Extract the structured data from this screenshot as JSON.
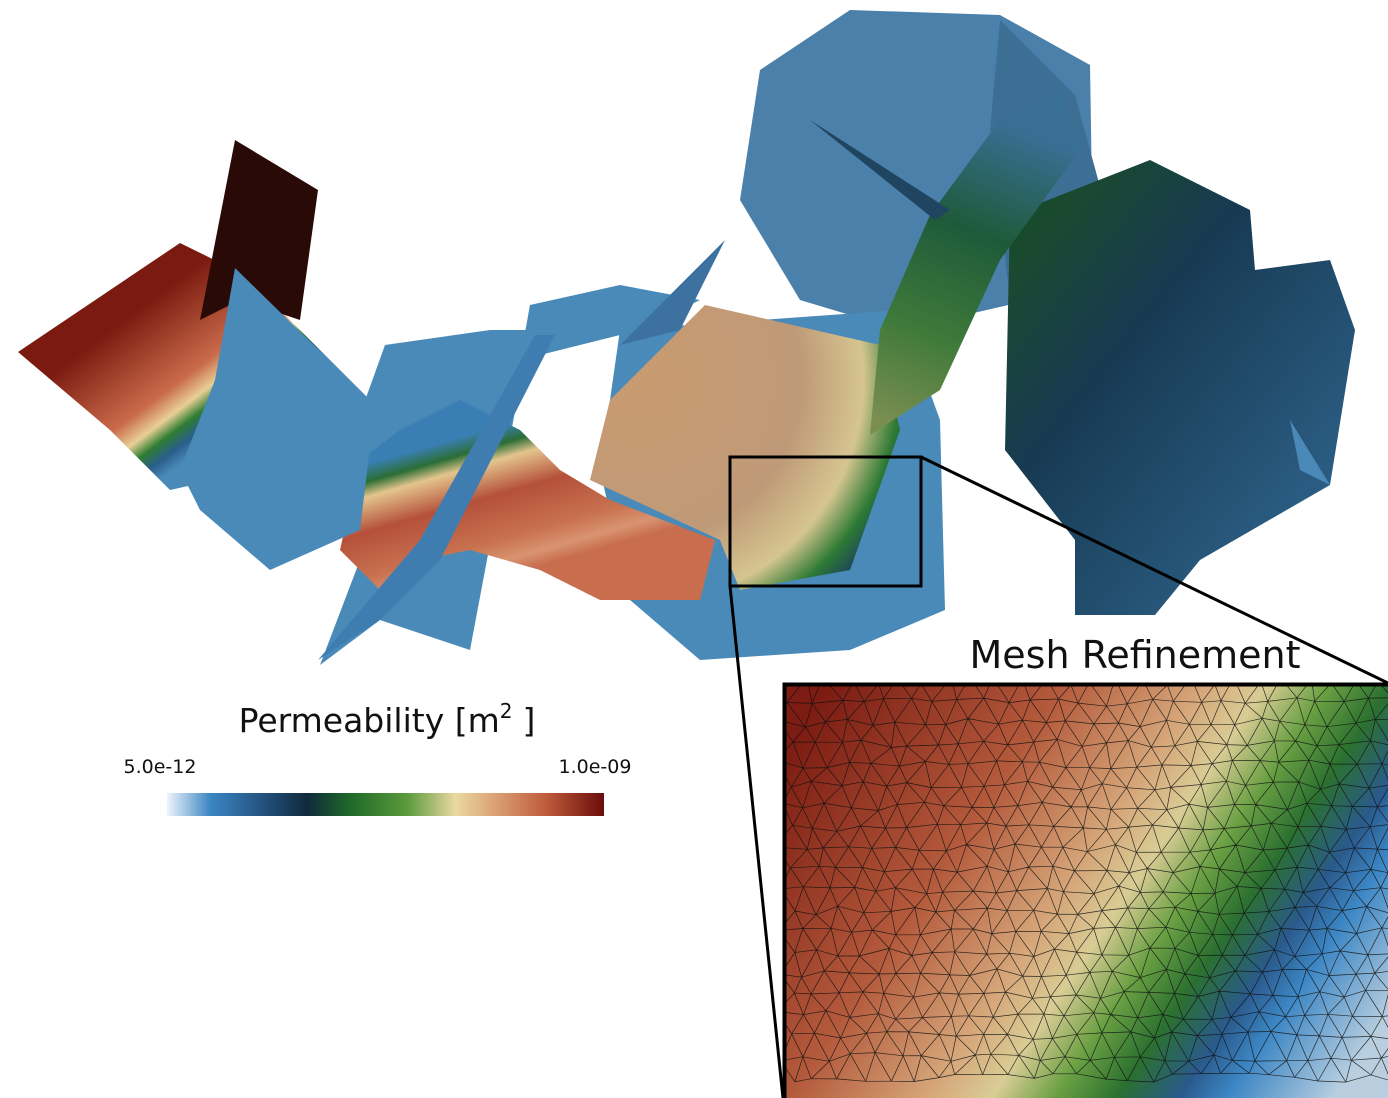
{
  "colorbar": {
    "title": "Permeability [m",
    "title_superscript": "2",
    "title_end": "]",
    "min_label": "5.0e-12",
    "max_label": "1.0e-09"
  },
  "inset": {
    "title": "Mesh Refinement"
  }
}
